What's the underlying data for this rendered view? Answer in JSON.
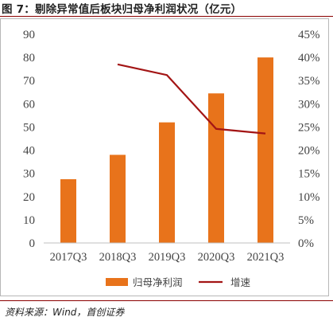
{
  "title": "图 7：剔除异常值后板块归母净利润状况（亿元）",
  "source": "资料来源：Wind，首创证券",
  "chart_data": {
    "type": "bar",
    "categories": [
      "2017Q3",
      "2018Q3",
      "2019Q3",
      "2020Q3",
      "2021Q3"
    ],
    "series": [
      {
        "name": "归母净利润",
        "type": "bar",
        "axis": "left",
        "values": [
          27.5,
          38,
          52,
          64.5,
          80
        ],
        "color": "#e8731b"
      },
      {
        "name": "增速",
        "type": "line",
        "axis": "right",
        "values": [
          null,
          38.5,
          36.2,
          24.6,
          23.6
        ],
        "color": "#a31515"
      }
    ],
    "y_left": {
      "min": 0,
      "max": 90,
      "step": 10,
      "ticks": [
        "0",
        "10",
        "20",
        "30",
        "40",
        "50",
        "60",
        "70",
        "80",
        "90"
      ]
    },
    "y_right": {
      "min": 0,
      "max": 45,
      "step": 5,
      "ticks": [
        "0%",
        "5%",
        "10%",
        "15%",
        "20%",
        "25%",
        "30%",
        "35%",
        "40%",
        "45%"
      ]
    },
    "grid": false,
    "legend_position": "bottom"
  }
}
